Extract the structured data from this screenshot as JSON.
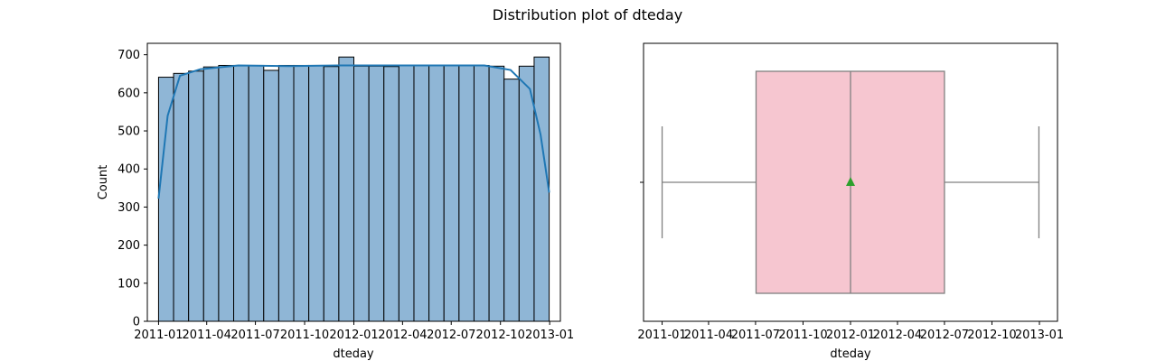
{
  "figure_title": "Distribution plot of dteday",
  "colors": {
    "hist_fill": "#8fb6d6",
    "hist_edge": "#000000",
    "kde_line": "#1f77b4",
    "box_fill": "#f6c6d0",
    "box_line": "#808080",
    "mean_marker": "#2ca02c"
  },
  "chart_data": [
    {
      "type": "bar",
      "subtype": "histogram-with-kde",
      "xlabel": "dteday",
      "ylabel": "Count",
      "xlim": [
        "2010-12-11",
        "2013-01-21"
      ],
      "ylim": [
        0,
        730
      ],
      "xticks": [
        "2011-01",
        "2011-04",
        "2011-07",
        "2011-10",
        "2012-01",
        "2012-04",
        "2012-07",
        "2012-10",
        "2013-01"
      ],
      "yticks": [
        0,
        100,
        200,
        300,
        400,
        500,
        600,
        700
      ],
      "bins": {
        "start": "2011-01-01",
        "end": "2012-12-31",
        "count": 26,
        "values": [
          641,
          651,
          657,
          668,
          672,
          672,
          672,
          659,
          672,
          672,
          672,
          669,
          694,
          670,
          670,
          669,
          672,
          672,
          672,
          672,
          672,
          672,
          670,
          636,
          670,
          694
        ]
      },
      "kde": {
        "x": [
          "2011-01-01",
          "2011-01-18",
          "2011-02-10",
          "2011-03-20",
          "2011-05-30",
          "2011-09-01",
          "2011-12-01",
          "2012-03-01",
          "2012-06-01",
          "2012-09-01",
          "2012-10-20",
          "2012-11-25",
          "2012-12-15",
          "2012-12-31"
        ],
        "y": [
          322,
          540,
          645,
          662,
          672,
          670,
          672,
          672,
          672,
          672,
          660,
          610,
          490,
          338
        ]
      },
      "grid": false
    },
    {
      "type": "box",
      "orientation": "horizontal",
      "xlabel": "dteday",
      "xlim": [
        "2010-11-26",
        "2013-02-05"
      ],
      "xticks": [
        "2011-01",
        "2011-04",
        "2011-07",
        "2011-10",
        "2012-01",
        "2012-04",
        "2012-07",
        "2012-10",
        "2013-01"
      ],
      "whisker_low": "2011-01-01",
      "q1": "2011-07-02",
      "median": "2012-01-01",
      "q3": "2012-07-01",
      "whisker_high": "2012-12-31",
      "mean": "2012-01-01",
      "grid": false
    }
  ]
}
